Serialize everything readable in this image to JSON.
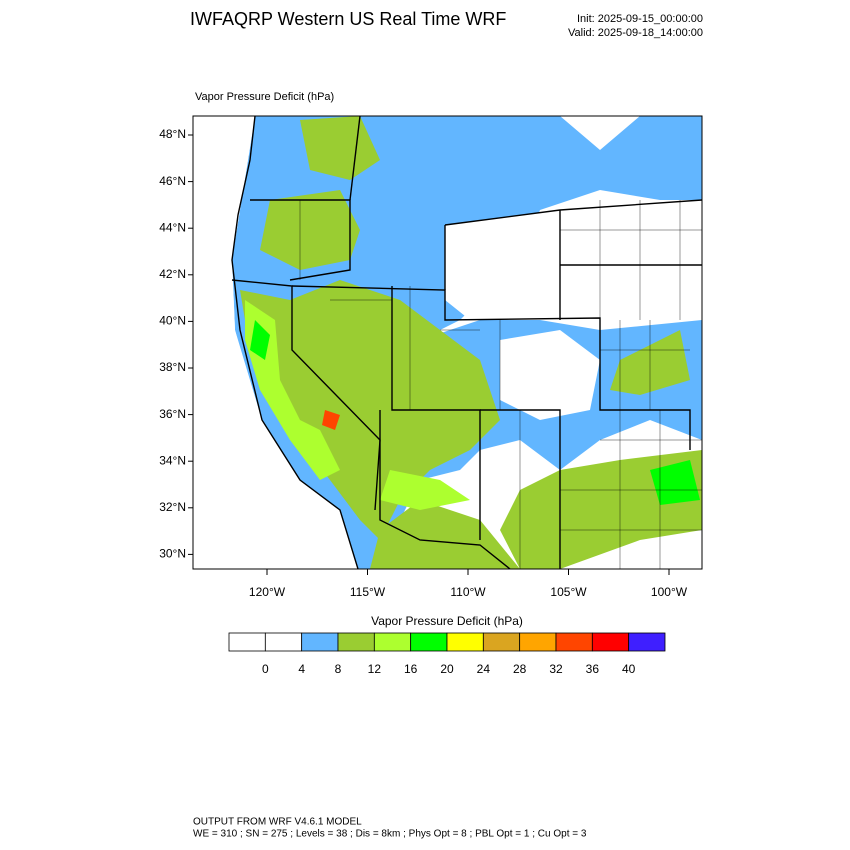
{
  "header": {
    "title": "IWFAQRP Western US Real Time WRF",
    "init": "Init: 2025-09-15_00:00:00",
    "valid": "Valid: 2025-09-18_14:00:00"
  },
  "map": {
    "field_label": "Vapor Pressure Deficit   (hPa)",
    "lat_labels": [
      "48°N",
      "46°N",
      "44°N",
      "42°N",
      "40°N",
      "38°N",
      "36°N",
      "34°N",
      "32°N",
      "30°N"
    ],
    "lon_labels": [
      "120°W",
      "115°W",
      "110°W",
      "105°W",
      "100°W"
    ]
  },
  "colorbar": {
    "title": "Vapor Pressure Deficit  (hPa)",
    "colors": [
      "#ffffff",
      "#ffffff",
      "#62b6ff",
      "#9acd32",
      "#adff2f",
      "#00ff00",
      "#ffff00",
      "#daa520",
      "#ffa500",
      "#ff4500",
      "#ff0000",
      "#3f1fff"
    ],
    "labels": [
      "0",
      "4",
      "8",
      "12",
      "16",
      "20",
      "24",
      "28",
      "32",
      "36",
      "40"
    ]
  },
  "footer": {
    "line1": "OUTPUT FROM WRF V4.6.1 MODEL",
    "line2": "WE = 310 ; SN = 275 ; Levels = 38 ; Dis = 8km ; Phys Opt = 8 ; PBL Opt = 1 ; Cu Opt = 3"
  }
}
